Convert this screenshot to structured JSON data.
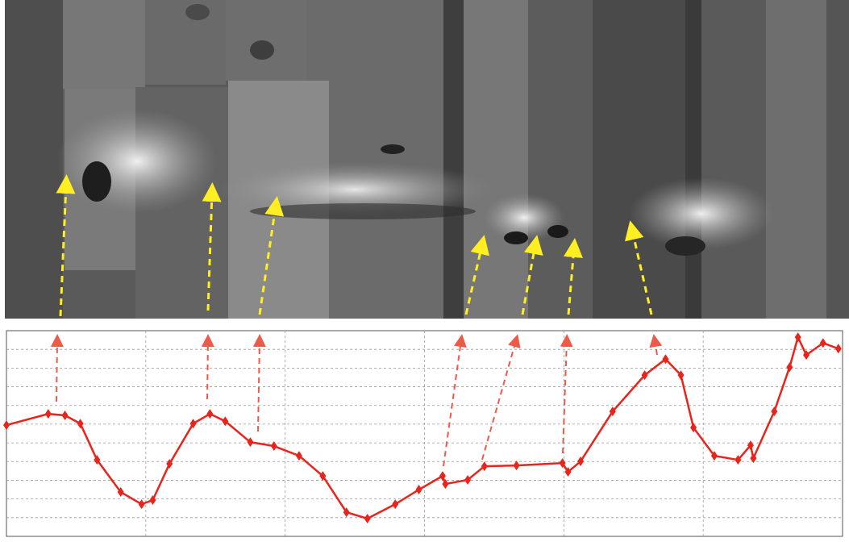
{
  "chart_data": {
    "type": "line",
    "x": [
      0,
      0.3,
      0.42,
      0.53,
      0.65,
      0.82,
      0.97,
      1.05,
      1.17,
      1.34,
      1.46,
      1.57,
      1.75,
      1.92,
      2.1,
      2.27,
      2.44,
      2.59,
      2.79,
      2.96,
      3.13,
      3.15,
      3.31,
      3.43,
      3.66,
      3.99,
      4.03,
      4.12,
      4.35,
      4.58,
      4.73,
      4.84,
      4.93,
      5.08,
      5.25,
      5.34,
      5.36,
      5.51,
      5.62,
      5.68,
      5.74,
      5.86,
      5.97
    ],
    "values": [
      5.95,
      6.55,
      6.47,
      6.03,
      4.09,
      2.37,
      1.72,
      1.94,
      3.88,
      6.03,
      6.55,
      6.16,
      5.04,
      4.83,
      4.31,
      3.23,
      1.29,
      0.95,
      1.72,
      2.5,
      3.23,
      2.8,
      3.02,
      3.75,
      3.79,
      3.92,
      3.45,
      4.01,
      6.68,
      8.62,
      9.48,
      8.62,
      5.82,
      4.31,
      4.09,
      4.87,
      4.18,
      6.68,
      9.05,
      10.65,
      9.7,
      10.34,
      10.04
    ],
    "color": "#e8241c",
    "xlim": [
      0,
      6
    ],
    "xticks": [
      1,
      2,
      3,
      4,
      5
    ],
    "ylim": [
      0,
      11
    ],
    "yticks": [
      1,
      2,
      3,
      4,
      5,
      6,
      7,
      8,
      9,
      10
    ],
    "grid": true
  }
}
